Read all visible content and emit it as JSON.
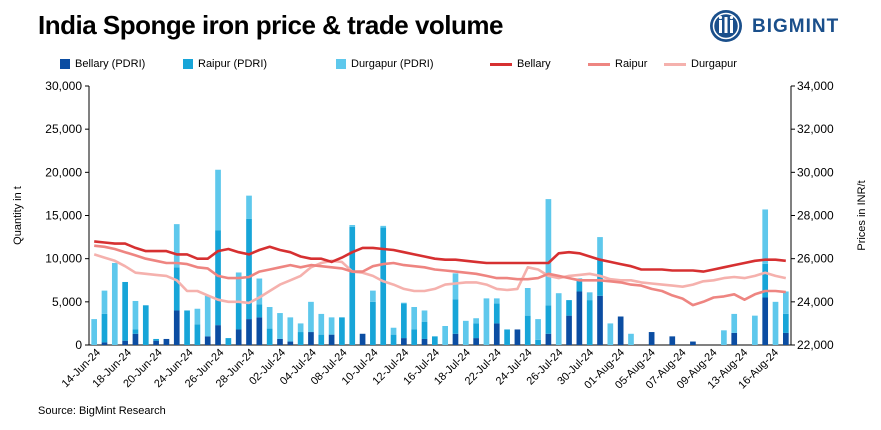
{
  "title": "India Sponge iron price & trade volume",
  "brand": "BIGMINT",
  "source": "Source: BigMint Research",
  "colors": {
    "Bellary (PDRI)": "#0b4da2",
    "Raipur (PDRI)": "#17a5d8",
    "Durgapur (PDRI)": "#5ec8ec",
    "Bellary": "#d63031",
    "Raipur": "#ee8581",
    "Durgapur": "#f5b1ad",
    "brand": "#1a4f8b"
  },
  "chart_data": {
    "type": "bar",
    "stacked": true,
    "title": "",
    "ylabel": "Quantity in t",
    "y2label": "Prices in INR/t",
    "ylim": [
      0,
      30000
    ],
    "y2lim": [
      22000,
      34000
    ],
    "yticks": [
      "0",
      "5,000",
      "10,000",
      "15,000",
      "20,000",
      "25,000",
      "30,000"
    ],
    "y2ticks": [
      "22,000",
      "24,000",
      "26,000",
      "28,000",
      "30,000",
      "32,000",
      "34,000"
    ],
    "grid": false,
    "legend_position": "top",
    "legend": [
      "Bellary (PDRI)",
      "Raipur (PDRI)",
      "Durgapur (PDRI)",
      "Bellary",
      "Raipur",
      "Durgapur"
    ],
    "xtick_labels": [
      "14-Jun-24",
      "18-Jun-24",
      "20-Jun-24",
      "24-Jun-24",
      "26-Jun-24",
      "28-Jun-24",
      "02-Jul-24",
      "04-Jul-24",
      "08-Jul-24",
      "10-Jul-24",
      "12-Jul-24",
      "16-Jul-24",
      "18-Jul-24",
      "22-Jul-24",
      "24-Jul-24",
      "26-Jul-24",
      "30-Jul-24",
      "01-Aug-24",
      "05-Aug-24",
      "07-Aug-24",
      "09-Aug-24",
      "13-Aug-24",
      "16-Aug-24"
    ],
    "bar_series": [
      {
        "name": "Bellary (PDRI)",
        "axis": "left",
        "values": [
          0,
          300,
          0,
          500,
          1300,
          0,
          500,
          700,
          4000,
          0,
          0,
          1000,
          2300,
          0,
          1800,
          3000,
          3200,
          0,
          700,
          400,
          0,
          1500,
          0,
          1200,
          0,
          0,
          1300,
          0,
          0,
          0,
          800,
          0,
          700,
          0,
          0,
          1300,
          0,
          800,
          0,
          2500,
          0,
          1800,
          0,
          0,
          1300,
          0,
          3400,
          6200,
          0,
          5700,
          0,
          3300,
          0,
          0,
          1500,
          0,
          1000,
          0,
          400,
          0,
          0,
          0,
          1400,
          0,
          0,
          5500,
          0,
          1400
        ]
      },
      {
        "name": "Raipur (PDRI)",
        "axis": "left",
        "values": [
          0,
          3300,
          0,
          6800,
          500,
          4600,
          200,
          0,
          5000,
          4000,
          2400,
          0,
          11000,
          800,
          3100,
          11600,
          1500,
          1900,
          0,
          0,
          1500,
          0,
          1200,
          0,
          3200,
          13700,
          0,
          5000,
          13600,
          1200,
          4000,
          1800,
          2000,
          1000,
          0,
          4000,
          0,
          1700,
          0,
          2300,
          1800,
          0,
          3400,
          600,
          3300,
          0,
          1800,
          1500,
          5200,
          4300,
          0,
          0,
          0,
          0,
          0,
          0,
          0,
          0,
          0,
          0,
          0,
          0,
          0,
          0,
          0,
          3900,
          0,
          2200
        ]
      },
      {
        "name": "Durgapur (PDRI)",
        "axis": "left",
        "values": [
          3000,
          2700,
          9500,
          0,
          3300,
          0,
          0,
          0,
          5000,
          0,
          1800,
          4700,
          7000,
          0,
          3500,
          2700,
          3000,
          2500,
          3000,
          2800,
          1000,
          3500,
          2400,
          2000,
          0,
          200,
          0,
          1300,
          200,
          800,
          100,
          2600,
          1300,
          0,
          2200,
          3000,
          2800,
          600,
          5400,
          600,
          0,
          0,
          3200,
          2400,
          12300,
          6000,
          0,
          0,
          900,
          2500,
          2500,
          0,
          1300,
          0,
          0,
          0,
          0,
          0,
          0,
          0,
          0,
          1700,
          2200,
          0,
          3400,
          6300,
          5000,
          2600
        ]
      }
    ],
    "line_series": [
      {
        "name": "Bellary",
        "axis": "right",
        "values": [
          26800,
          26750,
          26700,
          26700,
          26500,
          26350,
          26350,
          26350,
          26200,
          26200,
          26000,
          26000,
          26350,
          26450,
          26300,
          26200,
          26400,
          26550,
          26400,
          26300,
          26100,
          26000,
          26000,
          25850,
          26050,
          26300,
          26500,
          26500,
          26450,
          26400,
          26300,
          26200,
          26100,
          26000,
          25950,
          25950,
          25900,
          25850,
          25800,
          25800,
          25800,
          25800,
          25800,
          25800,
          25800,
          26250,
          26300,
          26250,
          26100,
          25950,
          25850,
          25750,
          25650,
          25500,
          25500,
          25500,
          25450,
          25450,
          25450,
          25400,
          25500,
          25600,
          25700,
          25800,
          25900,
          25950,
          25950,
          25900
        ]
      },
      {
        "name": "Raipur",
        "axis": "right",
        "values": [
          26600,
          26550,
          26450,
          26300,
          26150,
          26000,
          25900,
          25800,
          25800,
          25750,
          25600,
          25550,
          25200,
          25100,
          25100,
          25150,
          25400,
          25500,
          25600,
          25700,
          25600,
          25700,
          25650,
          25600,
          25550,
          25400,
          25400,
          25650,
          25750,
          25800,
          25700,
          25650,
          25600,
          25500,
          25450,
          25400,
          25350,
          25300,
          25200,
          25100,
          25100,
          25050,
          25050,
          25100,
          25300,
          25200,
          25100,
          25000,
          25000,
          25000,
          24950,
          24900,
          24800,
          24750,
          24600,
          24500,
          24300,
          24150,
          23850,
          24000,
          24200,
          24250,
          24350,
          24100,
          24350,
          24500,
          24500,
          24450
        ]
      },
      {
        "name": "Durgapur",
        "axis": "right",
        "values": [
          26200,
          26050,
          25900,
          25650,
          25350,
          25300,
          25250,
          25200,
          25000,
          24500,
          24500,
          24300,
          24100,
          24000,
          24000,
          23950,
          24200,
          24500,
          24800,
          25000,
          25200,
          25600,
          25800,
          25900,
          25850,
          25400,
          25350,
          25200,
          24950,
          24800,
          24600,
          24500,
          24500,
          24600,
          24800,
          24850,
          24900,
          24900,
          24800,
          24600,
          24550,
          24600,
          25600,
          25500,
          25200,
          25100,
          25200,
          25250,
          25300,
          25200,
          25050,
          25000,
          25000,
          24900,
          24850,
          24800,
          24750,
          24700,
          24800,
          24950,
          25000,
          25100,
          25150,
          25100,
          25200,
          25350,
          25200,
          25100
        ]
      }
    ]
  }
}
